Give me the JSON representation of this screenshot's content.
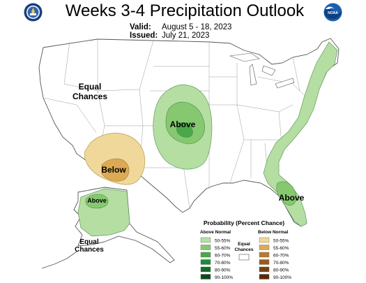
{
  "header": {
    "title": "Weeks 3-4 Precipitation Outlook",
    "valid_label": "Valid:",
    "valid_value": "August 5 - 18, 2023",
    "issued_label": "Issued:",
    "issued_value": "July 21, 2023"
  },
  "logos": {
    "left": "department-of-commerce-seal",
    "right": "noaa-logo",
    "right_text": "NOAA"
  },
  "map": {
    "labels": {
      "equal_chances_west": [
        "Equal",
        "Chances"
      ],
      "above_central": "Above",
      "below_southwest": "Below",
      "above_alaska": "Above",
      "equal_chances_alaska": [
        "Equal",
        "Chances"
      ],
      "above_florida": "Above"
    },
    "regions": [
      {
        "id": "central-plains",
        "category": "above",
        "levels": [
          "50-55%",
          "55-60%",
          "60-70%"
        ]
      },
      {
        "id": "east-coast",
        "category": "above",
        "levels": [
          "50-55%",
          "55-60%"
        ]
      },
      {
        "id": "southwest",
        "category": "below",
        "levels": [
          "50-55%",
          "55-60%"
        ]
      },
      {
        "id": "alaska-north",
        "category": "above",
        "levels": [
          "50-55%",
          "55-60%"
        ]
      }
    ]
  },
  "legend": {
    "title": "Probability (Percent Chance)",
    "above_header": "Above Normal",
    "below_header": "Below Normal",
    "equal_label": [
      "Equal",
      "Chances"
    ],
    "above": [
      {
        "label": "50-55%",
        "color": "#b5dea3"
      },
      {
        "label": "55-60%",
        "color": "#86c870"
      },
      {
        "label": "60-70%",
        "color": "#4aa84b"
      },
      {
        "label": "70-80%",
        "color": "#1f8a3a"
      },
      {
        "label": "80-90%",
        "color": "#146a2a"
      },
      {
        "label": "90-100%",
        "color": "#0c4a1c"
      }
    ],
    "below": [
      {
        "label": "50-55%",
        "color": "#f0d89a"
      },
      {
        "label": "55-60%",
        "color": "#dcaa55"
      },
      {
        "label": "60-70%",
        "color": "#b87a30"
      },
      {
        "label": "70-80%",
        "color": "#9a5a1e"
      },
      {
        "label": "80-90%",
        "color": "#7a4010"
      },
      {
        "label": "90-100%",
        "color": "#5a2808"
      }
    ]
  }
}
